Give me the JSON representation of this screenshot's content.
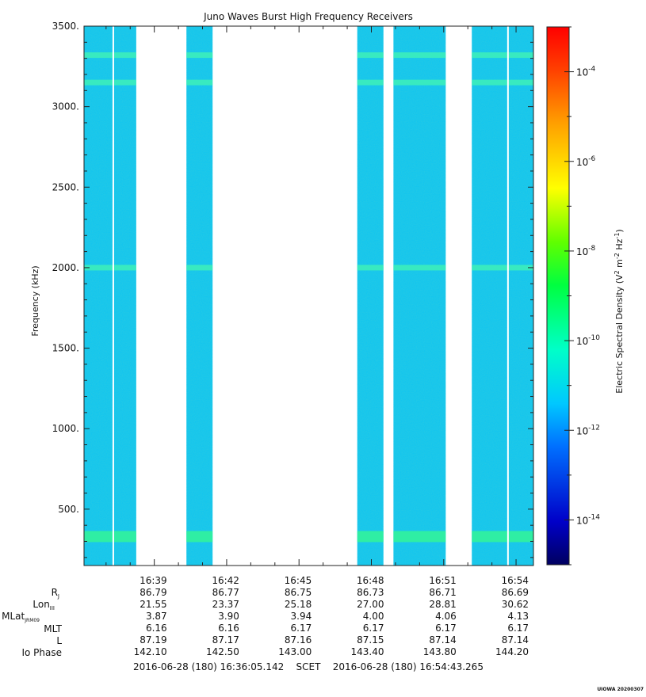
{
  "chart_data": {
    "type": "heatmap",
    "title": "Juno Waves Burst High Frequency Receivers",
    "ylabel": "Frequency (kHz)",
    "ylim": [
      150,
      3500
    ],
    "y_ticks": [
      {
        "value": 500,
        "label": "500."
      },
      {
        "value": 1000,
        "label": "1000."
      },
      {
        "value": 1500,
        "label": "1500."
      },
      {
        "value": 2000,
        "label": "2000."
      },
      {
        "value": 2500,
        "label": "2500."
      },
      {
        "value": 3000,
        "label": "3000."
      },
      {
        "value": 3500,
        "label": "3500."
      }
    ],
    "x_range_label": "2016-06-28 (180) 16:36:05.142    SCET    2016-06-28 (180) 16:54:43.265",
    "x_start": "16:36:05.142",
    "x_end": "16:54:43.265",
    "x_ticks": [
      "16:39",
      "16:42",
      "16:45",
      "16:48",
      "16:51",
      "16:54"
    ],
    "data_intervals": [
      {
        "start": "16:36:05",
        "end": "16:38:15"
      },
      {
        "start": "16:40:20",
        "end": "16:41:25"
      },
      {
        "start": "16:47:25",
        "end": "16:48:30"
      },
      {
        "start": "16:48:55",
        "end": "16:51:05"
      },
      {
        "start": "16:52:10",
        "end": "16:54:43"
      }
    ],
    "emission_bands_khz": [
      330,
      2000,
      3150,
      3320
    ],
    "colorbar": {
      "label": "Electric Spectral Density (V² m⁻² Hz⁻¹)",
      "scale": "log",
      "range": [
        1e-15,
        0.001
      ],
      "tick_labels": [
        "10-4",
        "10-6",
        "10-8",
        "10-10",
        "10-12",
        "10-14"
      ],
      "colors": [
        "#00008b",
        "#0000ff",
        "#00bfff",
        "#00ffd0",
        "#00ff00",
        "#ffff00",
        "#ff8c00",
        "#ff0000"
      ]
    },
    "ephemeris": {
      "row_labels": [
        "RJ",
        "LonIII",
        "MLatJRM09",
        "MLT",
        "L",
        "Io Phase"
      ],
      "columns": [
        {
          "time": "16:39",
          "values": [
            "86.79",
            "21.55",
            "3.87",
            "6.16",
            "87.19",
            "142.10"
          ]
        },
        {
          "time": "16:42",
          "values": [
            "86.77",
            "23.37",
            "3.90",
            "6.16",
            "87.17",
            "142.50"
          ]
        },
        {
          "time": "16:45",
          "values": [
            "86.75",
            "25.18",
            "3.94",
            "6.17",
            "87.16",
            "143.00"
          ]
        },
        {
          "time": "16:48",
          "values": [
            "86.73",
            "27.00",
            "4.00",
            "6.17",
            "87.15",
            "143.40"
          ]
        },
        {
          "time": "16:51",
          "values": [
            "86.71",
            "28.81",
            "4.06",
            "6.17",
            "87.14",
            "143.80"
          ]
        },
        {
          "time": "16:54",
          "values": [
            "86.69",
            "30.62",
            "4.13",
            "6.17",
            "87.14",
            "144.20"
          ]
        }
      ]
    },
    "grid": false,
    "legend": "colorbar-right"
  },
  "footer": {
    "range": "2016-06-28 (180) 16:36:05.142    SCET    2016-06-28 (180) 16:54:43.265",
    "stamp": "UIOWA 20200307"
  },
  "labels": {
    "title": "Juno Waves Burst High Frequency Receivers",
    "ylabel": "Frequency (kHz)",
    "rj": "R",
    "rj_sub": "J",
    "lon": "Lon",
    "lon_sub": "III",
    "mlat": "MLat",
    "mlat_sub": "JRM09",
    "mlt": "MLT",
    "l": "L",
    "io": "Io Phase",
    "cb_label": "Electric Spectral Density (V",
    "cb_sup1": "2",
    "cb_mid": " m",
    "cb_sup2": "-2",
    "cb_mid2": " Hz",
    "cb_sup3": "-1",
    "cb_end": ")"
  }
}
